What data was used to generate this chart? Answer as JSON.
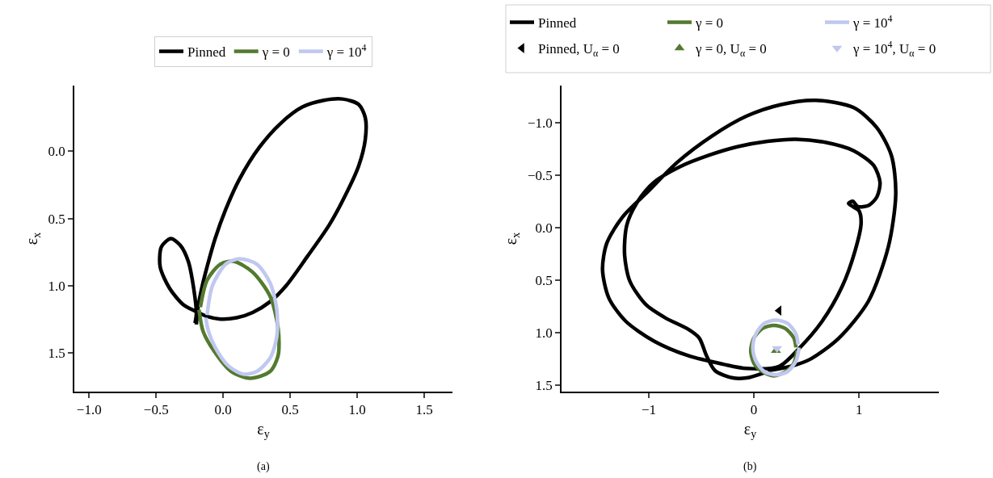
{
  "chart_data": [
    {
      "type": "line",
      "xlabel": "ε$_{y}$",
      "ylabel": "ε$_{x}$",
      "annotations": [
        "(a)"
      ],
      "xlim": [
        -1.11,
        1.71
      ],
      "ylim": [
        1.79,
        -0.49
      ],
      "xticks": [
        {
          "value": -1.0,
          "label": "−1.0"
        },
        {
          "value": -0.5,
          "label": "−0.5"
        },
        {
          "value": 0.0,
          "label": "0.0"
        },
        {
          "value": 0.5,
          "label": "0.5"
        },
        {
          "value": 1.0,
          "label": "1.0"
        },
        {
          "value": 1.5,
          "label": "1.5"
        }
      ],
      "yticks": [
        {
          "value": 0.0,
          "label": "0.0"
        },
        {
          "value": 0.5,
          "label": "0.5"
        },
        {
          "value": 1.0,
          "label": "1.0"
        },
        {
          "value": 1.5,
          "label": "1.5"
        }
      ],
      "legend": "top",
      "line_style": "solid",
      "series": [
        {
          "name": "Pinned",
          "color": "#000000",
          "x": [
            -0.2,
            -0.19,
            -0.16,
            -0.12,
            -0.06,
            0.02,
            0.12,
            0.27,
            0.43,
            0.59,
            0.75,
            0.89,
            1.01,
            1.06,
            1.06,
            1.01,
            0.91,
            0.79,
            0.63,
            0.47,
            0.35,
            0.22,
            0.1,
            -0.02,
            -0.12,
            -0.21,
            -0.3,
            -0.4,
            -0.47,
            -0.46,
            -0.39,
            -0.32,
            -0.26,
            -0.22,
            -0.2,
            -0.21
          ],
          "values": [
            1.29,
            1.18,
            1.02,
            0.86,
            0.65,
            0.43,
            0.21,
            -0.03,
            -0.21,
            -0.33,
            -0.38,
            -0.39,
            -0.35,
            -0.25,
            -0.09,
            0.11,
            0.33,
            0.55,
            0.78,
            1.0,
            1.12,
            1.2,
            1.24,
            1.25,
            1.23,
            1.19,
            1.14,
            1.02,
            0.86,
            0.71,
            0.65,
            0.7,
            0.82,
            1.02,
            1.21,
            1.28
          ]
        },
        {
          "name": "γ = 0",
          "color": "#537a2f",
          "x": [
            -0.17,
            -0.12,
            -0.02,
            0.08,
            0.22,
            0.35,
            0.41,
            0.41,
            0.35,
            0.2,
            0.06,
            -0.06,
            -0.15,
            -0.18
          ],
          "values": [
            1.16,
            0.96,
            0.84,
            0.82,
            0.9,
            1.08,
            1.32,
            1.52,
            1.64,
            1.69,
            1.64,
            1.5,
            1.34,
            1.18
          ]
        },
        {
          "name": "γ = 10$^{4}$",
          "color": "#c0c8ef",
          "x": [
            -0.12,
            -0.08,
            0.02,
            0.12,
            0.25,
            0.35,
            0.4,
            0.4,
            0.35,
            0.25,
            0.15,
            0.04,
            -0.06,
            -0.11,
            -0.13
          ],
          "values": [
            1.22,
            1.0,
            0.84,
            0.8,
            0.84,
            0.98,
            1.18,
            1.38,
            1.54,
            1.64,
            1.66,
            1.6,
            1.46,
            1.34,
            1.24
          ]
        }
      ]
    },
    {
      "type": "line",
      "xlabel": "ε$_{y}$",
      "ylabel": "ε$_{x}$",
      "annotations": [
        "(b)"
      ],
      "xlim": [
        -1.83,
        1.76
      ],
      "ylim": [
        1.56,
        -1.35
      ],
      "xticks": [
        {
          "value": -1,
          "label": "−1"
        },
        0,
        1
      ],
      "yticks": [
        {
          "value": -1.0,
          "label": "−1.0"
        },
        {
          "value": -0.5,
          "label": "−0.5"
        },
        {
          "value": 0.0,
          "label": "0.0"
        },
        {
          "value": 0.5,
          "label": "0.5"
        },
        {
          "value": 1.0,
          "label": "1.0"
        },
        {
          "value": 1.5,
          "label": "1.5"
        }
      ],
      "legend": "top",
      "line_style": "solid",
      "series": [
        {
          "name": "Pinned",
          "color": "#000000",
          "x": [
            0.13,
            0.35,
            0.54,
            0.81,
            1.09,
            1.28,
            1.35,
            1.31,
            1.17,
            0.95,
            0.59,
            0.26,
            -0.07,
            -0.4,
            -0.73,
            -1.0,
            -1.25,
            -1.4,
            -1.44,
            -1.38,
            -1.22,
            -0.95,
            -0.62,
            -0.29,
            -0.07,
            0.24,
            0.43,
            0.65,
            0.84,
            0.96,
            1.02,
            1.0,
            0.94,
            0.9,
            0.94,
            0.99,
            1.09,
            1.17,
            1.2,
            1.14,
            0.95,
            0.68,
            0.4,
            0.13,
            -0.15,
            -0.42,
            -0.7,
            -0.95,
            -1.11,
            -1.21,
            -1.23,
            -1.18,
            -1.03,
            -0.84,
            -0.62,
            -0.52,
            -0.45,
            -0.37,
            -0.2,
            -0.07,
            0.1
          ],
          "values": [
            1.36,
            1.32,
            1.25,
            1.05,
            0.7,
            0.18,
            -0.32,
            -0.68,
            -0.95,
            -1.14,
            -1.21,
            -1.17,
            -1.06,
            -0.87,
            -0.62,
            -0.35,
            -0.1,
            0.15,
            0.4,
            0.67,
            0.89,
            1.08,
            1.22,
            1.3,
            1.34,
            1.32,
            1.15,
            0.89,
            0.56,
            0.23,
            -0.04,
            -0.16,
            -0.2,
            -0.23,
            -0.25,
            -0.2,
            -0.21,
            -0.29,
            -0.43,
            -0.59,
            -0.73,
            -0.81,
            -0.84,
            -0.82,
            -0.77,
            -0.69,
            -0.58,
            -0.43,
            -0.24,
            -0.02,
            0.26,
            0.51,
            0.73,
            0.86,
            0.97,
            1.05,
            1.22,
            1.36,
            1.43,
            1.43,
            1.38
          ]
        },
        {
          "name": "γ = 0",
          "color": "#537a2f",
          "x": [
            0.41,
            0.38,
            0.3,
            0.19,
            0.08,
            0.0,
            -0.03,
            0.0,
            0.08,
            0.19,
            0.3,
            0.38,
            0.4
          ],
          "values": [
            1.17,
            1.29,
            1.37,
            1.41,
            1.37,
            1.29,
            1.17,
            1.05,
            0.96,
            0.93,
            0.96,
            1.05,
            1.14
          ]
        },
        {
          "name": "γ = 10$^{4}$",
          "color": "#c0c8ef",
          "x": [
            0.43,
            0.4,
            0.32,
            0.21,
            0.1,
            0.02,
            -0.01,
            0.02,
            0.1,
            0.21,
            0.32,
            0.4,
            0.42
          ],
          "values": [
            1.14,
            1.27,
            1.37,
            1.4,
            1.37,
            1.27,
            1.14,
            1.01,
            0.91,
            0.88,
            0.91,
            1.01,
            1.11
          ]
        },
        {
          "name": "Pinned, U$_{α}$ = 0",
          "color": "#000000",
          "type": "scatter",
          "marker": "triangle-left",
          "x": [
            0.24
          ],
          "values": [
            0.79
          ]
        },
        {
          "name": "γ = 0, U$_{α}$ = 0",
          "color": "#537a2f",
          "type": "scatter",
          "marker": "triangle-up",
          "x": [
            0.21
          ],
          "values": [
            1.17
          ]
        },
        {
          "name": "γ = 10$^{4}$, U$_{α}$ = 0",
          "color": "#c0c8ef",
          "type": "scatter",
          "marker": "triangle-down",
          "x": [
            0.22
          ],
          "values": [
            1.15
          ]
        }
      ]
    }
  ]
}
